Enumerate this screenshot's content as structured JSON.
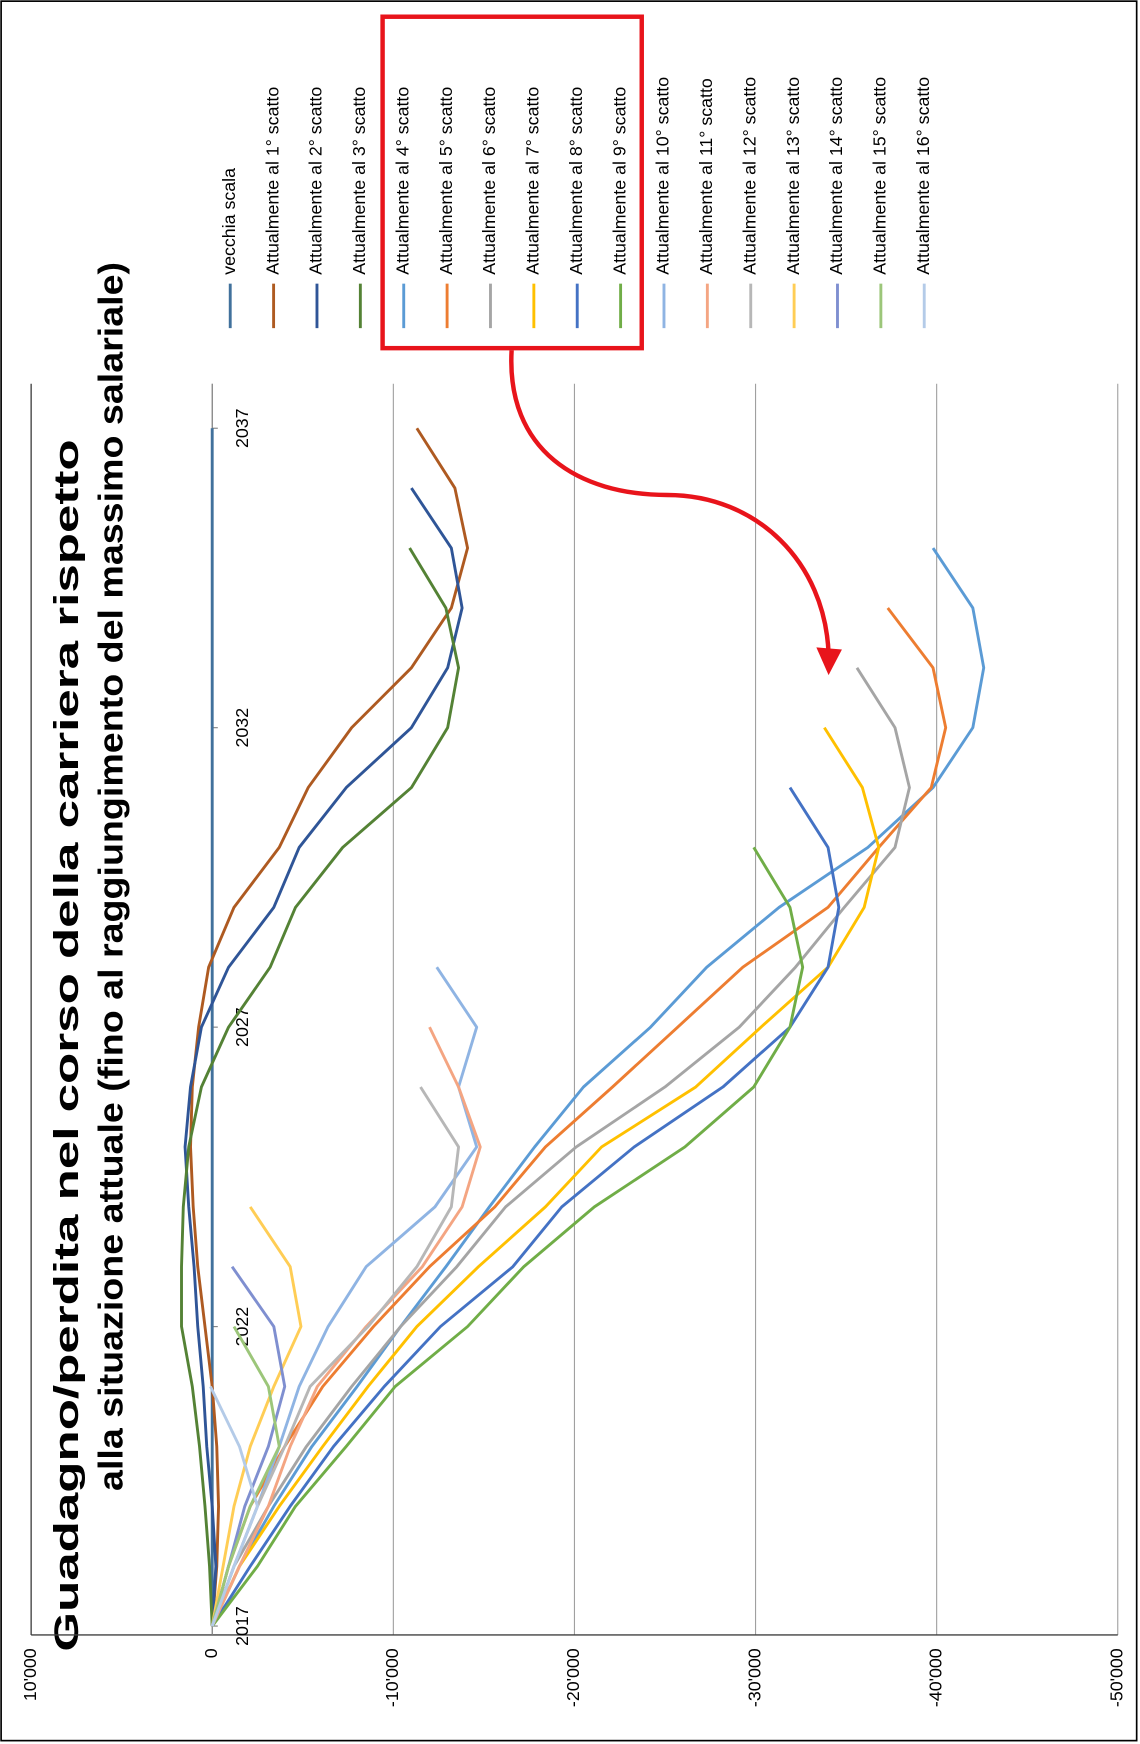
{
  "chart_data": {
    "type": "line",
    "title": "Guadagno/perdita nel corso della carriera rispetto",
    "subtitle": "alla situazione attuale (fino al raggiungimento del massimo salariale)",
    "x": [
      2017,
      2018,
      2019,
      2020,
      2021,
      2022,
      2023,
      2024,
      2025,
      2026,
      2027,
      2028,
      2029,
      2030,
      2031,
      2032,
      2033,
      2034,
      2035,
      2036,
      2037
    ],
    "xlim": [
      2017,
      2037
    ],
    "xticks": [
      2017,
      2022,
      2027,
      2032,
      2037
    ],
    "ylim": [
      -50000,
      10000
    ],
    "yticks": [
      {
        "value": 10000,
        "label": "10'000"
      },
      0,
      {
        "value": -10000,
        "label": "-10'000"
      },
      {
        "value": -20000,
        "label": "-20'000"
      },
      {
        "value": -30000,
        "label": "-30'000"
      },
      {
        "value": -40000,
        "label": "-40'000"
      },
      {
        "value": -50000,
        "label": "-50'000"
      }
    ],
    "grid": true,
    "legend": "right",
    "series": [
      {
        "name": "vecchia scala",
        "color": "#41719c",
        "values": [
          0,
          0,
          0,
          0,
          0,
          0,
          0,
          0,
          0,
          0,
          0,
          0,
          0,
          0,
          0,
          0,
          0,
          0,
          0,
          0,
          0
        ]
      },
      {
        "name": "Attualmente al 1° scatto",
        "color": "#ae5a21",
        "values": [
          0,
          -250,
          -350,
          -250,
          0,
          400,
          800,
          1050,
          1200,
          1100,
          750,
          200,
          -1200,
          -3700,
          -5300,
          -7700,
          -11000,
          -13200,
          -14100,
          -13400,
          -11300
        ]
      },
      {
        "name": "Attualmente al 2° scatto",
        "color": "#2f5597",
        "values": [
          0,
          -200,
          0,
          300,
          500,
          800,
          1000,
          1300,
          1500,
          1200,
          600,
          -900,
          -3400,
          -4800,
          -7400,
          -11000,
          -13000,
          -13800,
          -13200,
          -11000,
          null
        ]
      },
      {
        "name": "Attualmente al 3° scatto",
        "color": "#548235",
        "values": [
          0,
          150,
          400,
          700,
          1100,
          1700,
          1700,
          1600,
          1300,
          600,
          -900,
          -3200,
          -4600,
          -7200,
          -11000,
          -13000,
          -13600,
          -12900,
          -10900,
          null,
          null
        ]
      },
      {
        "name": "Attualmente al 4° scatto",
        "color": "#5b9bd5",
        "values": [
          0,
          -1500,
          -3400,
          -5500,
          -8000,
          -10400,
          -12900,
          -15300,
          -17800,
          -20500,
          -24200,
          -27300,
          -31300,
          -36200,
          -39800,
          -42000,
          -42600,
          -42000,
          -39800,
          null,
          null
        ]
      },
      {
        "name": "Attualmente al 5° scatto",
        "color": "#ed7d31",
        "values": [
          0,
          -900,
          -2100,
          -4000,
          -6100,
          -8900,
          -12000,
          -15600,
          -18400,
          -22100,
          -25700,
          -29300,
          -34000,
          -36800,
          -39700,
          -40500,
          -39800,
          -37300,
          null,
          null,
          null
        ]
      },
      {
        "name": "Attualmente al 6° scatto",
        "color": "#a5a5a5",
        "values": [
          0,
          -1200,
          -3100,
          -5200,
          -7700,
          -10400,
          -13500,
          -16200,
          -20100,
          -25000,
          -29100,
          -32200,
          -34900,
          -37700,
          -38500,
          -37700,
          -35600,
          null,
          null,
          null,
          null
        ]
      },
      {
        "name": "Attualmente al 7° scatto",
        "color": "#ffc000",
        "values": [
          0,
          -1500,
          -3700,
          -6100,
          -8600,
          -11300,
          -14700,
          -18400,
          -21500,
          -26700,
          -30300,
          -34000,
          -36000,
          -36800,
          -35900,
          -33800,
          null,
          null,
          null,
          null,
          null
        ]
      },
      {
        "name": "Attualmente al 8° scatto",
        "color": "#4472c4",
        "values": [
          0,
          -2100,
          -4300,
          -6700,
          -9500,
          -12600,
          -16600,
          -19300,
          -23300,
          -28200,
          -31900,
          -34000,
          -34600,
          -34000,
          -31900,
          null,
          null,
          null,
          null,
          null,
          null
        ]
      },
      {
        "name": "Attualmente al 9° scatto",
        "color": "#70ad47",
        "values": [
          0,
          -2500,
          -4600,
          -7400,
          -10100,
          -14100,
          -17200,
          -21100,
          -26100,
          -29900,
          -31900,
          -32600,
          -31900,
          -29900,
          null,
          null,
          null,
          null,
          null,
          null,
          null
        ]
      },
      {
        "name": "Attualmente al 10° scatto",
        "color": "#8fb4e3",
        "values": [
          0,
          -1200,
          -2500,
          -3700,
          -4800,
          -6400,
          -8500,
          -12300,
          -14600,
          -13600,
          -14600,
          -12400,
          null,
          null,
          null,
          null,
          null,
          null,
          null,
          null,
          null
        ]
      },
      {
        "name": "Attualmente al 11° scatto",
        "color": "#f4a582",
        "values": [
          0,
          -1500,
          -3100,
          -4300,
          -5800,
          -8500,
          -11600,
          -13800,
          -14800,
          -13600,
          -12000,
          null,
          null,
          null,
          null,
          null,
          null,
          null,
          null,
          null,
          null
        ]
      },
      {
        "name": "Attualmente al 12° scatto",
        "color": "#b7b7b7",
        "values": [
          0,
          -1200,
          -2500,
          -4000,
          -5400,
          -8600,
          -11300,
          -13200,
          -13600,
          -11500,
          null,
          null,
          null,
          null,
          null,
          null,
          null,
          null,
          null,
          null,
          null
        ]
      },
      {
        "name": "Attualmente al 13° scatto",
        "color": "#ffcd55",
        "values": [
          0,
          -600,
          -1200,
          -2100,
          -3400,
          -4900,
          -4300,
          -2100,
          null,
          null,
          null,
          null,
          null,
          null,
          null,
          null,
          null,
          null,
          null,
          null,
          null
        ]
      },
      {
        "name": "Attualmente al 14° scatto",
        "color": "#7f8fd0",
        "values": [
          0,
          -900,
          -1800,
          -3100,
          -4000,
          -3400,
          -1100,
          null,
          null,
          null,
          null,
          null,
          null,
          null,
          null,
          null,
          null,
          null,
          null,
          null,
          null
        ]
      },
      {
        "name": "Attualmente al 15° scatto",
        "color": "#9cc67a",
        "values": [
          0,
          -900,
          -2100,
          -3700,
          -3100,
          -1200,
          null,
          null,
          null,
          null,
          null,
          null,
          null,
          null,
          null,
          null,
          null,
          null,
          null,
          null,
          null
        ]
      },
      {
        "name": "Attualmente al 16° scatto",
        "color": "#b4cbe8",
        "values": [
          0,
          -1200,
          -2500,
          -1500,
          100,
          null,
          null,
          null,
          null,
          null,
          null,
          null,
          null,
          null,
          null,
          null,
          null,
          null,
          null,
          null,
          null
        ]
      }
    ]
  }
}
